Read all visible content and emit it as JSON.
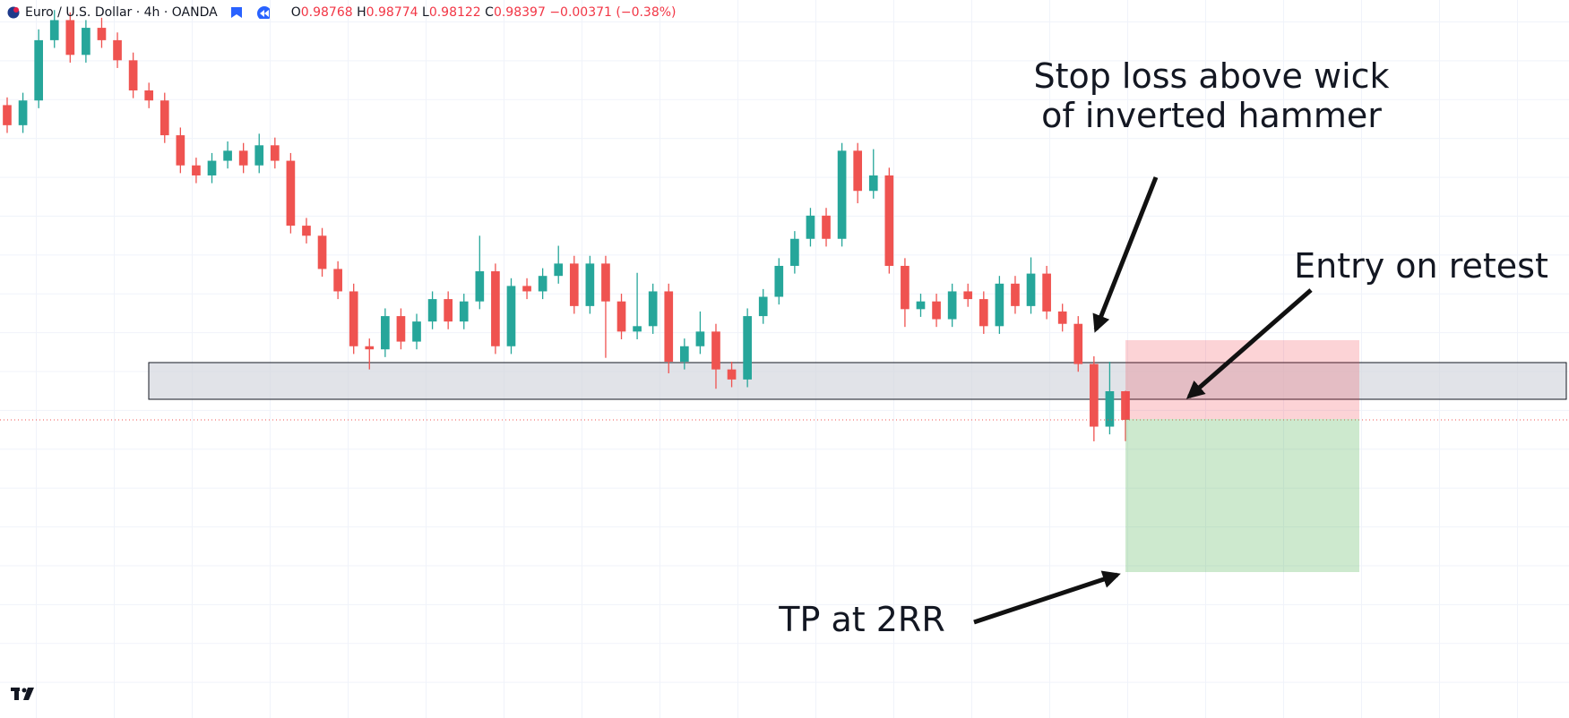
{
  "header": {
    "symbol": "Euro / U.S. Dollar · 4h · OANDA",
    "ohlc_labels": [
      "O",
      "H",
      "L",
      "C"
    ],
    "change": "−0.00371 (−0.38%)"
  },
  "chart_data": {
    "type": "candlestick",
    "open": [
      1.0247,
      1.0221,
      1.0253,
      1.0331,
      1.0357,
      1.0312,
      1.0347,
      1.0331,
      1.0305,
      1.0266,
      1.0253,
      1.0208,
      1.0169,
      1.0156,
      1.0175,
      1.0188,
      1.0169,
      1.0195,
      1.0175,
      1.0091,
      1.0078,
      1.0035,
      1.0006,
      0.9935,
      0.9931,
      0.9974,
      0.9941,
      0.9967,
      0.9996,
      0.9967,
      0.9993,
      1.0032,
      0.9935,
      1.0013,
      1.0006,
      1.0026,
      1.0042,
      0.9987,
      1.0042,
      0.9993,
      0.9954,
      0.9961,
      1.0006,
      0.9915,
      0.9935,
      0.9954,
      0.9905,
      0.9892,
      0.9974,
      0.9999,
      1.0039,
      1.0074,
      1.0104,
      1.0074,
      1.0188,
      1.0136,
      1.0156,
      1.0039,
      0.9983,
      0.9993,
      0.997,
      1.0006,
      0.9996,
      0.9961,
      1.0016,
      0.9987,
      1.0029,
      0.998,
      0.9964,
      0.9912,
      0.9831,
      0.98768
    ],
    "high": [
      1.0257,
      1.0263,
      1.0345,
      1.037,
      1.0367,
      1.0357,
      1.036,
      1.0341,
      1.0315,
      1.0276,
      1.0263,
      1.0218,
      1.0179,
      1.0185,
      1.02,
      1.0198,
      1.021,
      1.0205,
      1.0185,
      1.0101,
      1.0088,
      1.0045,
      1.0016,
      0.9945,
      0.9984,
      0.9984,
      0.9977,
      1.0006,
      1.0006,
      1.0003,
      1.0078,
      1.0042,
      1.0023,
      1.0023,
      1.0036,
      1.0065,
      1.0052,
      1.0052,
      1.0052,
      1.0003,
      1.003,
      1.0016,
      1.0016,
      0.9945,
      0.998,
      0.9964,
      0.9915,
      0.9984,
      1.0009,
      1.0049,
      1.0084,
      1.0114,
      1.0114,
      1.0198,
      1.0198,
      1.019,
      1.0166,
      1.0049,
      1.0003,
      1.0003,
      1.0016,
      1.0016,
      1.0006,
      1.0026,
      1.0026,
      1.005,
      1.0039,
      0.999,
      0.9974,
      0.9922,
      0.9915,
      0.98774
    ],
    "low": [
      1.0211,
      1.0211,
      1.0243,
      1.0321,
      1.0302,
      1.0302,
      1.0321,
      1.0295,
      1.0256,
      1.0243,
      1.0198,
      1.0159,
      1.0146,
      1.0146,
      1.0165,
      1.0159,
      1.0159,
      1.0165,
      1.0081,
      1.0068,
      1.0025,
      0.9996,
      0.9925,
      0.9905,
      0.9921,
      0.9931,
      0.9931,
      0.9957,
      0.9957,
      0.9957,
      0.9983,
      0.9925,
      0.9925,
      0.9996,
      0.9996,
      1.0016,
      0.9977,
      0.9977,
      0.992,
      0.9944,
      0.9944,
      0.9951,
      0.99,
      0.9905,
      0.9925,
      0.988,
      0.9882,
      0.9882,
      0.9964,
      0.9989,
      1.0029,
      1.0064,
      1.0064,
      1.0064,
      1.012,
      1.0126,
      1.0029,
      0.996,
      0.9973,
      0.996,
      0.996,
      0.9986,
      0.9951,
      0.9951,
      0.9977,
      0.9977,
      0.997,
      0.9954,
      0.9902,
      0.9812,
      0.9821,
      0.98122
    ],
    "close": [
      1.0221,
      1.0253,
      1.0331,
      1.0357,
      1.0312,
      1.0347,
      1.0331,
      1.0305,
      1.0266,
      1.0253,
      1.0208,
      1.0169,
      1.0156,
      1.0175,
      1.0188,
      1.0169,
      1.0195,
      1.0175,
      1.0091,
      1.0078,
      1.0035,
      1.0006,
      0.9935,
      0.9931,
      0.9974,
      0.9941,
      0.9967,
      0.9996,
      0.9967,
      0.9993,
      1.0032,
      0.9935,
      1.0013,
      1.0006,
      1.0026,
      1.0042,
      0.9987,
      1.0042,
      0.9993,
      0.9954,
      0.9961,
      1.0006,
      0.9915,
      0.9935,
      0.9954,
      0.9905,
      0.9892,
      0.9974,
      0.9999,
      1.0039,
      1.0074,
      1.0104,
      1.0074,
      1.0188,
      1.0136,
      1.0156,
      1.0039,
      0.9983,
      0.9993,
      0.997,
      1.0006,
      0.9996,
      0.9961,
      1.0016,
      0.9987,
      1.0029,
      0.998,
      0.9964,
      0.9912,
      0.9831,
      0.98768,
      0.98397
    ],
    "up_color": "#26a69a",
    "down_color": "#ef5350",
    "ylim": [
      0.9454,
      1.0383
    ],
    "grid": true,
    "annotations": [
      {
        "lines": [
          "Stop loss above wick",
          "of inverted hammer"
        ]
      },
      {
        "lines": [
          "Entry on retest"
        ]
      },
      {
        "lines": [
          "TP at 2RR"
        ]
      }
    ]
  }
}
